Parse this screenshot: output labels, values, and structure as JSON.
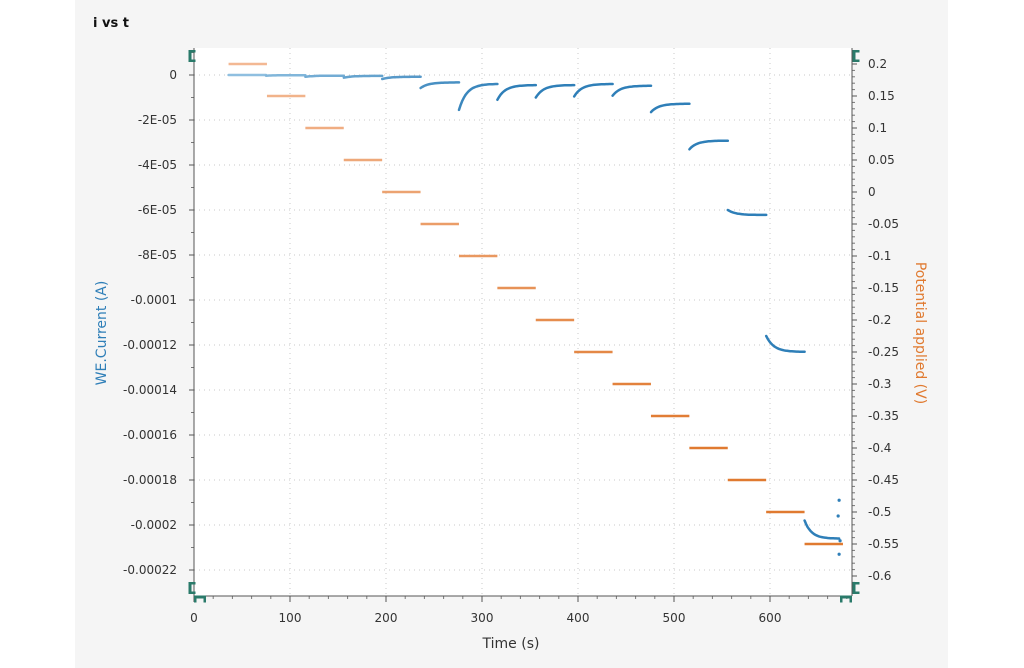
{
  "chart_data": {
    "type": "line",
    "title": "i vs t",
    "xlabel": "Time (s)",
    "ylabel": "WE.Current (A)",
    "y2label": "Potential applied (V)",
    "xlim": [
      0,
      685
    ],
    "ylim": [
      -0.000232,
      1.2e-05
    ],
    "y2lim": [
      -0.6125,
      0.2175
    ],
    "xticks": [
      "0",
      "100",
      "200",
      "300",
      "400",
      "500",
      "600"
    ],
    "yticks": [
      "0",
      "-2E-05",
      "-4E-05",
      "-6E-05",
      "-8E-05",
      "-0.0001",
      "-0.00012",
      "-0.00014",
      "-0.00016",
      "-0.00018",
      "-0.0002",
      "-0.00022"
    ],
    "y2ticks": [
      "0.2",
      "0.15",
      "0.1",
      "0.05",
      "0",
      "-0.05",
      "-0.1",
      "-0.15",
      "-0.2",
      "-0.25",
      "-0.3",
      "-0.35",
      "-0.4",
      "-0.45",
      "-0.5",
      "-0.55",
      "-0.6"
    ],
    "grid": true,
    "colors": {
      "current_light": "#8fbfe0",
      "current_dark": "#2f7fb8",
      "potential_light": "#f3b893",
      "potential_dark": "#e07a30",
      "axis_teal": "#2a7a6a"
    },
    "series": [
      {
        "axis": "left",
        "segments": [
          {
            "t_start": 36,
            "t_end": 75,
            "i_start": 0.0,
            "i_end": 0.0
          },
          {
            "t_start": 75,
            "t_end": 116,
            "i_start": -3e-07,
            "i_end": -1e-07
          },
          {
            "t_start": 116,
            "t_end": 156,
            "i_start": -8e-07,
            "i_end": -3e-07
          },
          {
            "t_start": 156,
            "t_end": 196,
            "i_start": -1.2e-06,
            "i_end": -4e-07
          },
          {
            "t_start": 196,
            "t_end": 236,
            "i_start": -1.8e-06,
            "i_end": -8e-07
          },
          {
            "t_start": 236,
            "t_end": 276,
            "i_start": -5.8e-06,
            "i_end": -3.3e-06
          },
          {
            "t_start": 276,
            "t_end": 316,
            "i_start": -1.55e-05,
            "i_end": -4e-06
          },
          {
            "t_start": 316,
            "t_end": 356,
            "i_start": -1.1e-05,
            "i_end": -4.5e-06
          },
          {
            "t_start": 356,
            "t_end": 396,
            "i_start": -1e-05,
            "i_end": -4.5e-06
          },
          {
            "t_start": 396,
            "t_end": 436,
            "i_start": -9.5e-06,
            "i_end": -4e-06
          },
          {
            "t_start": 436,
            "t_end": 476,
            "i_start": -9.2e-06,
            "i_end": -4.8e-06
          },
          {
            "t_start": 476,
            "t_end": 516,
            "i_start": -1.65e-05,
            "i_end": -1.28e-05
          },
          {
            "t_start": 516,
            "t_end": 556,
            "i_start": -3.3e-05,
            "i_end": -2.92e-05
          },
          {
            "t_start": 556,
            "t_end": 596,
            "i_start": -6e-05,
            "i_end": -6.22e-05
          },
          {
            "t_start": 596,
            "t_end": 636,
            "i_start": -0.000116,
            "i_end": -0.000123
          },
          {
            "t_start": 636,
            "t_end": 672,
            "i_start": -0.000198,
            "i_end": -0.000206
          }
        ]
      },
      {
        "axis": "right",
        "steps": [
          {
            "t_start": 36,
            "t_end": 76,
            "v": 0.2
          },
          {
            "t_start": 76,
            "t_end": 116,
            "v": 0.15
          },
          {
            "t_start": 116,
            "t_end": 156,
            "v": 0.1
          },
          {
            "t_start": 156,
            "t_end": 196,
            "v": 0.05
          },
          {
            "t_start": 196,
            "t_end": 236,
            "v": 0.0
          },
          {
            "t_start": 236,
            "t_end": 276,
            "v": -0.05
          },
          {
            "t_start": 276,
            "t_end": 316,
            "v": -0.1
          },
          {
            "t_start": 316,
            "t_end": 356,
            "v": -0.15
          },
          {
            "t_start": 356,
            "t_end": 396,
            "v": -0.2
          },
          {
            "t_start": 396,
            "t_end": 436,
            "v": -0.25
          },
          {
            "t_start": 436,
            "t_end": 476,
            "v": -0.3
          },
          {
            "t_start": 476,
            "t_end": 516,
            "v": -0.35
          },
          {
            "t_start": 516,
            "t_end": 556,
            "v": -0.4
          },
          {
            "t_start": 556,
            "t_end": 596,
            "v": -0.45
          },
          {
            "t_start": 596,
            "t_end": 636,
            "v": -0.5
          },
          {
            "t_start": 636,
            "t_end": 676,
            "v": -0.55
          }
        ]
      }
    ]
  }
}
